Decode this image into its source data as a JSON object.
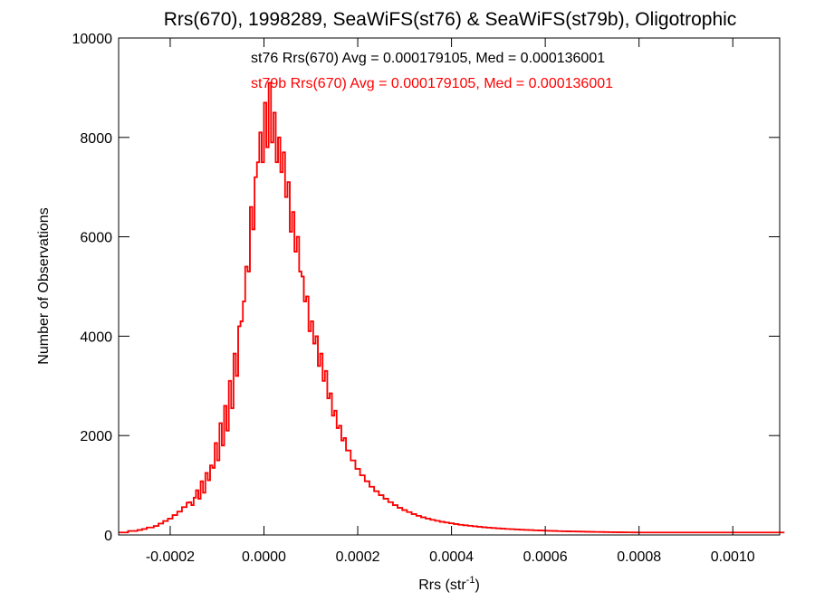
{
  "chart_data": {
    "type": "histogram",
    "title": "Rrs(670), 1998289, SeaWiFS(st76) & SeaWiFS(st79b), Oligotrophic",
    "xlabel": "Rrs (str",
    "xlabel_superscript": "-1",
    "xlabel_suffix": ")",
    "ylabel": "Number of Observations",
    "xlim": [
      -0.00031,
      0.0011
    ],
    "ylim": [
      0,
      10000
    ],
    "x_ticks": [
      -0.0002,
      0.0,
      0.0002,
      0.0004,
      0.0006,
      0.0008,
      0.001
    ],
    "x_tick_labels": [
      "-0.0002",
      "0.0000",
      "0.0002",
      "0.0004",
      "0.0006",
      "0.0008",
      "0.0010"
    ],
    "y_ticks": [
      0,
      2000,
      4000,
      6000,
      8000,
      10000
    ],
    "y_tick_labels": [
      "0",
      "2000",
      "4000",
      "6000",
      "8000",
      "10000"
    ],
    "grid": false,
    "annotations": [
      {
        "text": "st76 Rrs(670) Avg = 0.000179105, Med = 0.000136001",
        "color": "#000000"
      },
      {
        "text": "st79b Rrs(670) Avg = 0.000179105, Med = 0.000136001",
        "color": "#ff0000"
      }
    ],
    "series": [
      {
        "name": "st76",
        "color": "#000000",
        "bin_start": -0.00031,
        "bin_width": 5e-06,
        "values": [
          50,
          50,
          50,
          50,
          80,
          80,
          80,
          80,
          100,
          100,
          120,
          120,
          150,
          150,
          150,
          180,
          180,
          230,
          230,
          280,
          280,
          330,
          330,
          400,
          400,
          470,
          470,
          560,
          560,
          650,
          660,
          600,
          750,
          900,
          730,
          1080,
          850,
          1250,
          1100,
          1400,
          1350,
          1850,
          1500,
          2250,
          1800,
          2600,
          2100,
          3100,
          2550,
          3650,
          3200,
          4200,
          4300,
          4700,
          5400,
          5300,
          6600,
          6150,
          7200,
          7500,
          8100,
          7500,
          8700,
          7800,
          9100,
          7900,
          8500,
          7500,
          8000,
          7300,
          7700,
          6800,
          7100,
          6100,
          6500,
          5700,
          6000,
          5300,
          5200,
          4700,
          4800,
          4100,
          4300,
          3850,
          4000,
          3400,
          3650,
          3100,
          3300,
          2750,
          2850,
          2400,
          2500,
          2150,
          2200,
          1900,
          1950,
          1700,
          1700,
          1500,
          1500,
          1330,
          1330,
          1200,
          1200,
          1080,
          1080,
          970,
          970,
          880,
          880,
          800,
          800,
          730,
          730,
          660,
          660,
          600,
          600,
          545,
          545,
          500,
          500,
          460,
          460,
          420,
          420,
          385,
          385,
          355,
          355,
          330,
          330,
          305,
          305,
          285,
          285,
          265,
          265,
          250,
          250,
          235,
          235,
          220,
          220,
          205,
          205,
          195,
          195,
          185,
          185,
          175,
          175,
          165,
          165,
          155,
          155,
          148,
          148,
          140,
          140,
          133,
          133,
          127,
          127,
          121,
          121,
          116,
          116,
          111,
          111,
          106,
          106,
          102,
          102,
          98,
          98,
          94,
          94,
          90,
          90,
          87,
          87,
          84,
          84,
          81,
          81,
          78,
          78,
          75,
          75,
          73,
          73,
          71,
          71,
          69,
          69,
          67,
          67,
          65,
          65,
          63,
          63,
          61,
          61,
          60,
          60,
          58,
          58,
          57,
          57,
          55,
          55,
          54,
          54,
          53,
          53,
          52,
          52,
          51,
          51,
          50,
          50,
          50,
          50,
          50,
          50,
          50,
          50,
          50,
          50,
          50,
          50,
          50,
          50,
          50,
          50,
          50,
          50,
          50,
          50,
          50,
          50,
          50,
          50,
          50,
          50,
          50,
          50,
          50,
          50,
          50,
          50,
          50,
          50,
          50,
          50,
          50,
          50,
          50,
          50,
          50,
          50,
          50,
          50,
          50,
          50,
          50,
          50,
          50,
          50,
          50,
          50,
          50,
          50,
          50,
          50,
          50,
          50,
          50,
          50,
          50,
          50,
          50,
          50
        ]
      },
      {
        "name": "st79b",
        "color": "#ff0000",
        "bin_start": -0.00031,
        "bin_width": 5e-06,
        "values": [
          50,
          50,
          50,
          50,
          80,
          80,
          80,
          80,
          100,
          100,
          120,
          120,
          150,
          150,
          150,
          180,
          180,
          230,
          230,
          280,
          280,
          330,
          330,
          400,
          400,
          470,
          470,
          560,
          560,
          650,
          660,
          600,
          750,
          900,
          730,
          1080,
          850,
          1250,
          1100,
          1400,
          1350,
          1850,
          1500,
          2250,
          1800,
          2600,
          2100,
          3100,
          2550,
          3650,
          3200,
          4200,
          4300,
          4700,
          5400,
          5300,
          6600,
          6150,
          7200,
          7500,
          8100,
          7500,
          8700,
          7800,
          9100,
          7900,
          8500,
          7500,
          8000,
          7300,
          7700,
          6800,
          7100,
          6100,
          6500,
          5700,
          6000,
          5300,
          5200,
          4700,
          4800,
          4100,
          4300,
          3850,
          4000,
          3400,
          3650,
          3100,
          3300,
          2750,
          2850,
          2400,
          2500,
          2150,
          2200,
          1900,
          1950,
          1700,
          1700,
          1500,
          1500,
          1330,
          1330,
          1200,
          1200,
          1080,
          1080,
          970,
          970,
          880,
          880,
          800,
          800,
          730,
          730,
          660,
          660,
          600,
          600,
          545,
          545,
          500,
          500,
          460,
          460,
          420,
          420,
          385,
          385,
          355,
          355,
          330,
          330,
          305,
          305,
          285,
          285,
          265,
          265,
          250,
          250,
          235,
          235,
          220,
          220,
          205,
          205,
          195,
          195,
          185,
          185,
          175,
          175,
          165,
          165,
          155,
          155,
          148,
          148,
          140,
          140,
          133,
          133,
          127,
          127,
          121,
          121,
          116,
          116,
          111,
          111,
          106,
          106,
          102,
          102,
          98,
          98,
          94,
          94,
          90,
          90,
          87,
          87,
          84,
          84,
          81,
          81,
          78,
          78,
          75,
          75,
          73,
          73,
          71,
          71,
          69,
          69,
          67,
          67,
          65,
          65,
          63,
          63,
          61,
          61,
          60,
          60,
          58,
          58,
          57,
          57,
          55,
          55,
          54,
          54,
          53,
          53,
          52,
          52,
          51,
          51,
          50,
          50,
          50,
          50,
          50,
          50,
          50,
          50,
          50,
          50,
          50,
          50,
          50,
          50,
          50,
          50,
          50,
          50,
          50,
          50,
          50,
          50,
          50,
          50,
          50,
          50,
          50,
          50,
          50,
          50,
          50,
          50,
          50,
          50,
          50,
          50,
          50,
          50,
          50,
          50,
          50,
          50,
          50,
          50,
          50,
          50,
          50,
          50,
          50,
          50,
          50,
          50,
          50,
          50,
          50,
          50,
          50,
          50,
          50,
          50,
          50,
          50,
          50,
          50
        ]
      }
    ]
  }
}
